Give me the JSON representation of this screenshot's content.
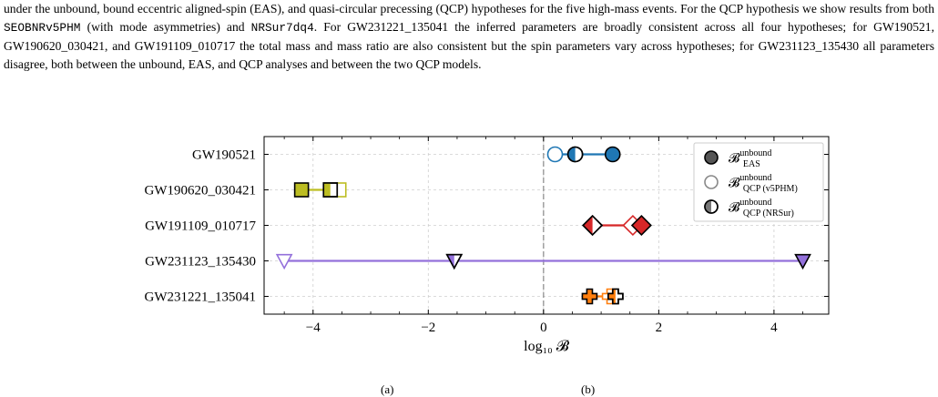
{
  "caption": {
    "seg1": "under the unbound, bound eccentric aligned-spin (EAS), and quasi-circular precessing (QCP) hypotheses for the five high-mass events. For the QCP hypothesis we show results from both ",
    "code1": "SEOBNRv5PHM",
    "seg2": " (with mode asymmetries) and ",
    "code2": "NRSur7dq4",
    "seg3": ". For GW231221_135041 the inferred parameters are broadly consistent across all four hypotheses; for GW190521, GW190620_030421, and GW191109_010717 the total mass and mass ratio are also consistent but the spin parameters vary across hypotheses; for GW231123_135430 all parameters disagree, both between the unbound, EAS, and QCP analyses and between the two QCP models."
  },
  "footer": {
    "left": "(a)",
    "right": "(b)"
  },
  "chart_data": {
    "type": "scatter",
    "xlabel": "log₁₀ 𝓑",
    "xlim": [
      -4.85,
      4.95
    ],
    "xticks": [
      -4,
      -2,
      0,
      2,
      4
    ],
    "xtick_labels": [
      "−4",
      "−2",
      "0",
      "2",
      "4"
    ],
    "grid": true,
    "legend_position": "upper-right",
    "legend": [
      {
        "kind": "filled",
        "main": "𝓑",
        "sup": "unbound",
        "sub": "EAS"
      },
      {
        "kind": "open",
        "main": "𝓑",
        "sup": "unbound",
        "sub": "QCP (v5PHM)"
      },
      {
        "kind": "half",
        "main": "𝓑",
        "sup": "unbound",
        "sub": "QCP (NRSur)"
      }
    ],
    "categories": [
      "GW190521",
      "GW190620_030421",
      "GW191109_010717",
      "GW231123_135430",
      "GW231221_135041"
    ],
    "series": [
      {
        "event": "GW190521",
        "marker": "circle",
        "color": "#1f77b4",
        "eas": 1.2,
        "qcp_v5phm": 0.2,
        "qcp_nrsur": 0.55
      },
      {
        "event": "GW190620_030421",
        "marker": "square",
        "color": "#bcbd22",
        "eas": -4.2,
        "qcp_v5phm": -3.55,
        "qcp_nrsur": -3.7
      },
      {
        "event": "GW191109_010717",
        "marker": "diamond",
        "color": "#d62728",
        "eas": 1.7,
        "qcp_v5phm": 1.55,
        "qcp_nrsur": 0.85
      },
      {
        "event": "GW231123_135430",
        "marker": "triangle-down",
        "color": "#9370db",
        "eas": 4.5,
        "qcp_v5phm": -4.5,
        "qcp_nrsur": -1.55
      },
      {
        "event": "GW231221_135041",
        "marker": "plus",
        "color": "#ff7f0e",
        "eas": 0.8,
        "qcp_v5phm": 1.15,
        "qcp_nrsur": 1.25
      }
    ]
  }
}
